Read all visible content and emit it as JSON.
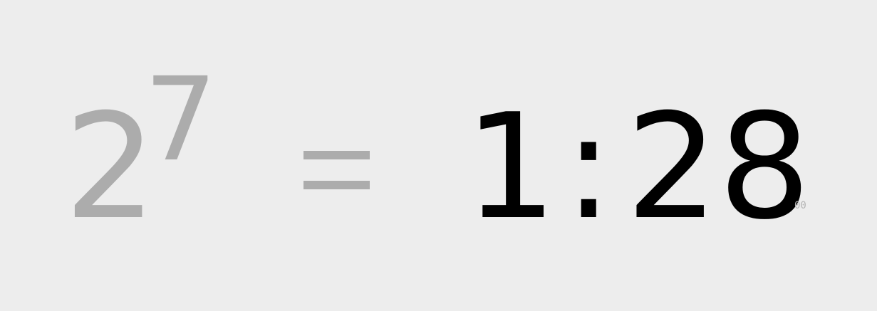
{
  "equation": {
    "base": "2",
    "exponent": "7",
    "equals_symbol": "="
  },
  "timer": {
    "minutes": "1",
    "separator": ":",
    "seconds": "28",
    "centiseconds": "00"
  },
  "colors": {
    "background": "#ededed",
    "equation_text": "#acacac",
    "timer_text": "#000000",
    "centiseconds_text": "#b4b4b4"
  }
}
